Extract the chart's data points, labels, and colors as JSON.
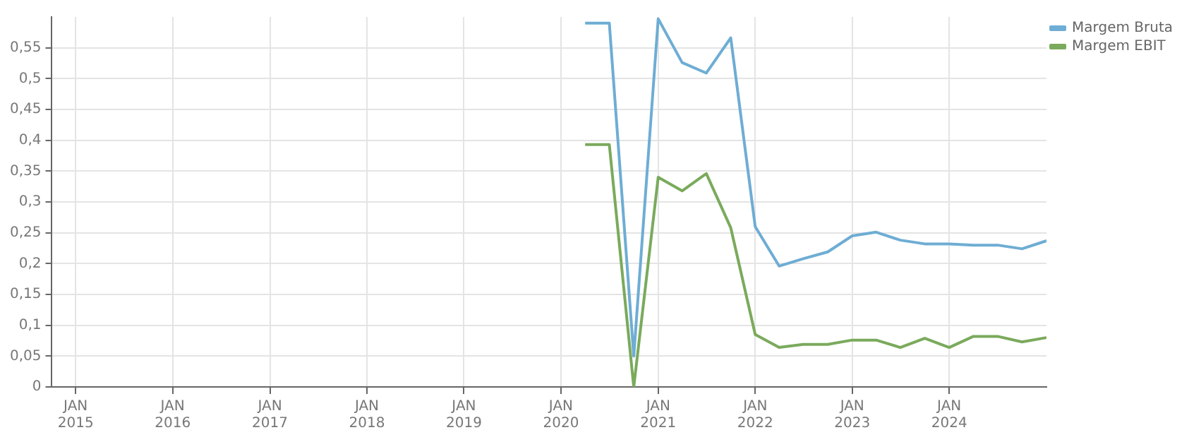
{
  "chart_data": {
    "type": "line",
    "x": [
      "2020-04",
      "2020-07",
      "2020-10",
      "2021-01",
      "2021-04",
      "2021-07",
      "2021-10",
      "2022-01",
      "2022-04",
      "2022-07",
      "2022-10",
      "2023-01",
      "2023-04",
      "2023-07",
      "2023-10",
      "2024-01",
      "2024-04",
      "2024-07",
      "2024-10",
      "2025-01"
    ],
    "series": [
      {
        "name": "Margem Bruta",
        "color": "#6eadd4",
        "values": [
          0.59,
          0.59,
          0.05,
          0.597,
          0.526,
          0.509,
          0.566,
          0.26,
          0.196,
          0.208,
          0.219,
          0.245,
          0.251,
          0.238,
          0.232,
          0.232,
          0.23,
          0.23,
          0.224,
          0.237
        ]
      },
      {
        "name": "Margem EBIT",
        "color": "#7aaa5c",
        "values": [
          0.393,
          0.393,
          0,
          0.34,
          0.318,
          0.346,
          0.258,
          0.085,
          0.064,
          0.069,
          0.069,
          0.076,
          0.076,
          0.064,
          0.079,
          0.064,
          0.082,
          0.082,
          0.073,
          0.08
        ]
      }
    ],
    "xlim": [
      "2014-10",
      "2025-01"
    ],
    "xticks": [
      {
        "value": "2015-01",
        "label": "JAN\n2015"
      },
      {
        "value": "2016-01",
        "label": "JAN\n2016"
      },
      {
        "value": "2017-01",
        "label": "JAN\n2017"
      },
      {
        "value": "2018-01",
        "label": "JAN\n2018"
      },
      {
        "value": "2019-01",
        "label": "JAN\n2019"
      },
      {
        "value": "2020-01",
        "label": "JAN\n2020"
      },
      {
        "value": "2021-01",
        "label": "JAN\n2021"
      },
      {
        "value": "2022-01",
        "label": "JAN\n2022"
      },
      {
        "value": "2023-01",
        "label": "JAN\n2023"
      },
      {
        "value": "2024-01",
        "label": "JAN\n2024"
      }
    ],
    "ylim": [
      0,
      0.6
    ],
    "yticks": [
      {
        "value": 0,
        "label": "0"
      },
      {
        "value": 0.05,
        "label": "0,05"
      },
      {
        "value": 0.1,
        "label": "0,1"
      },
      {
        "value": 0.15,
        "label": "0,15"
      },
      {
        "value": 0.2,
        "label": "0,2"
      },
      {
        "value": 0.25,
        "label": "0,25"
      },
      {
        "value": 0.3,
        "label": "0,3"
      },
      {
        "value": 0.35,
        "label": "0,35"
      },
      {
        "value": 0.4,
        "label": "0,4"
      },
      {
        "value": 0.45,
        "label": "0,45"
      },
      {
        "value": 0.5,
        "label": "0,5"
      },
      {
        "value": 0.55,
        "label": "0,55"
      }
    ],
    "grid": true,
    "legend": "top right",
    "marker": "none",
    "line_style": "solid"
  }
}
